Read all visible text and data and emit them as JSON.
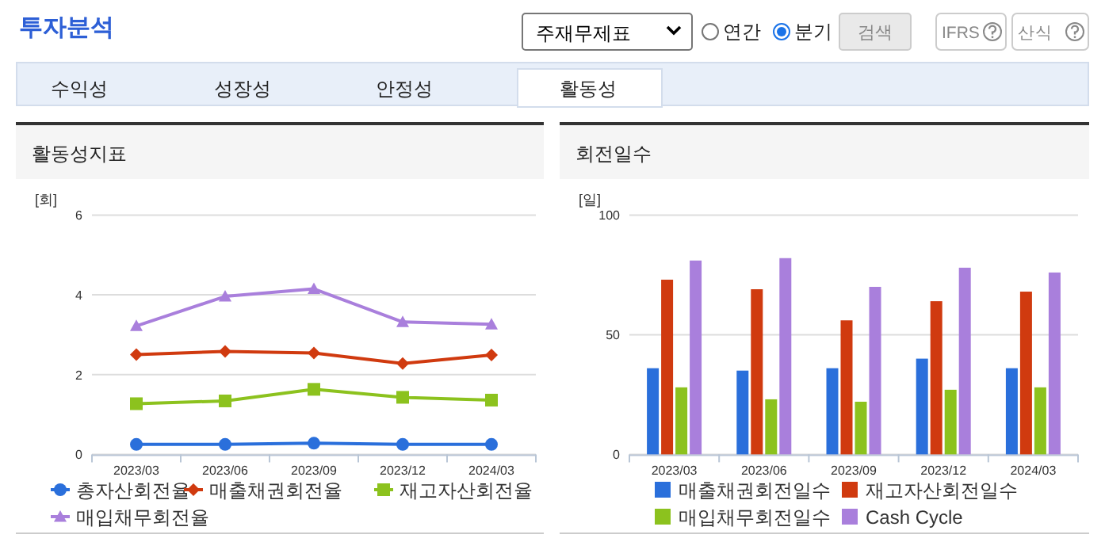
{
  "chart_data": [
    {
      "type": "other",
      "title": "투자분석",
      "annotations": [
        "주재무제표",
        "연간",
        "분기",
        "검색",
        "IFRS",
        "산식",
        "수익성",
        "성장성",
        "안정성",
        "활동성"
      ]
    },
    {
      "type": "line",
      "title": "활동성지표",
      "ylabel": "[회]",
      "categories": [
        "2023/03",
        "2023/06",
        "2023/09",
        "2023/12",
        "2024/03"
      ],
      "ylim": [
        0,
        6
      ],
      "yticks": [
        0,
        2,
        4,
        6
      ],
      "grid": "y",
      "legend": "bottom",
      "series": [
        {
          "name": "총자산회전율",
          "color": "#2a6fdb",
          "marker": "circle",
          "values": [
            0.25,
            0.25,
            0.28,
            0.25,
            0.25
          ]
        },
        {
          "name": "매출채권회전율",
          "color": "#d03a0f",
          "marker": "diamond",
          "values": [
            2.5,
            2.58,
            2.54,
            2.28,
            2.49
          ]
        },
        {
          "name": "재고자산회전율",
          "color": "#8cc21e",
          "marker": "square",
          "values": [
            1.27,
            1.34,
            1.63,
            1.43,
            1.36
          ]
        },
        {
          "name": "매입채무회전율",
          "color": "#a97fdc",
          "marker": "triangle",
          "values": [
            3.22,
            3.96,
            4.15,
            3.32,
            3.26
          ]
        }
      ]
    },
    {
      "type": "bar",
      "title": "회전일수",
      "ylabel": "[일]",
      "categories": [
        "2023/03",
        "2023/06",
        "2023/09",
        "2023/12",
        "2024/03"
      ],
      "ylim": [
        0,
        100
      ],
      "yticks": [
        0,
        50,
        100
      ],
      "grid": "y",
      "legend": "bottom",
      "series": [
        {
          "name": "매출채권회전일수",
          "color": "#2a6fdb",
          "values": [
            36,
            35,
            36,
            40,
            36
          ]
        },
        {
          "name": "재고자산회전일수",
          "color": "#d03a0f",
          "values": [
            73,
            69,
            56,
            64,
            68
          ]
        },
        {
          "name": "매입채무회전일수",
          "color": "#8cc21e",
          "values": [
            28,
            23,
            22,
            27,
            28
          ]
        },
        {
          "name": "Cash Cycle",
          "color": "#a97fdc",
          "values": [
            81,
            82,
            70,
            78,
            76
          ]
        }
      ]
    }
  ]
}
